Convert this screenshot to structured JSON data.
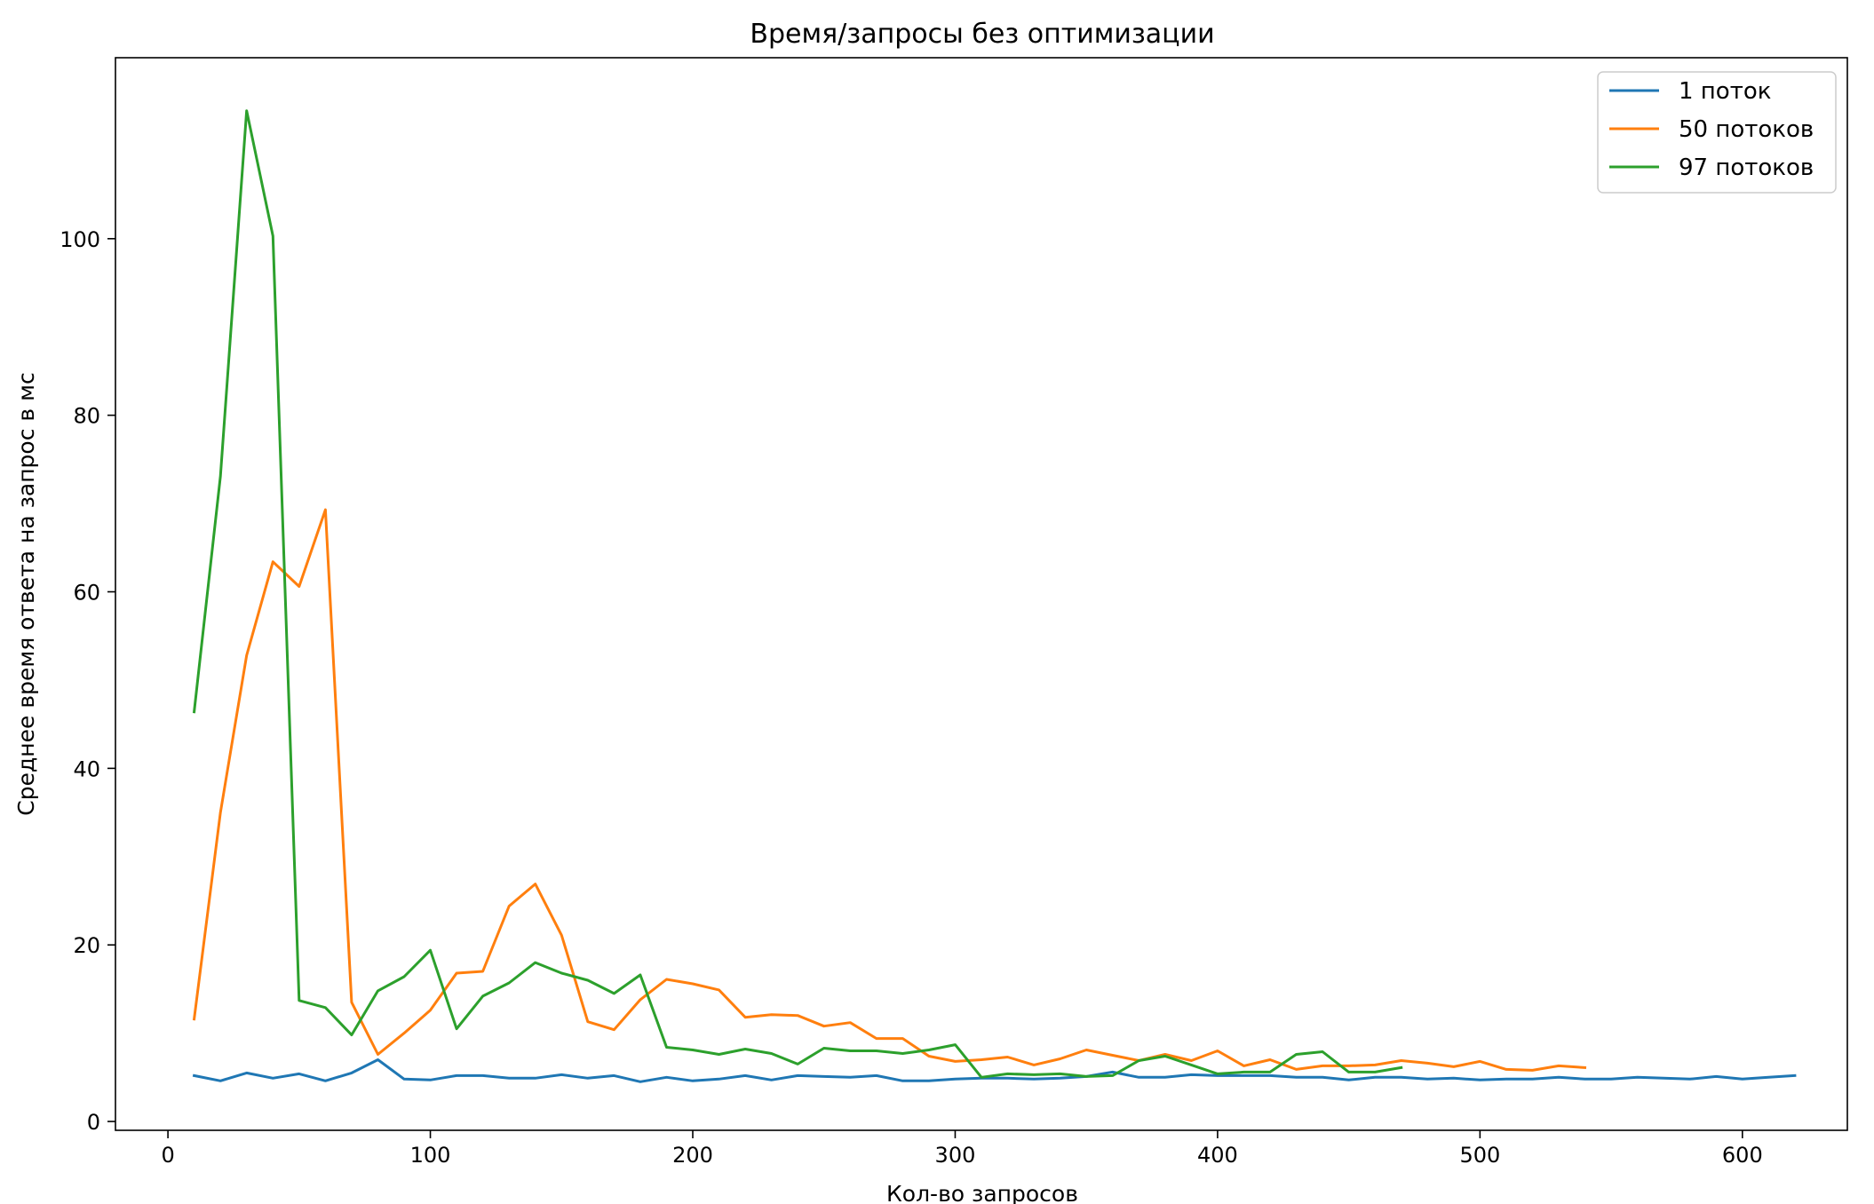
{
  "chart_data": {
    "type": "line",
    "title": "Время/запросы без оптимизации",
    "xlabel": "Кол-во запросов",
    "ylabel": "Среднее время ответа на запрос в мс",
    "xlim": [
      -20,
      640
    ],
    "ylim": [
      -1,
      120.5
    ],
    "xticks": [
      0,
      100,
      200,
      300,
      400,
      500,
      600
    ],
    "yticks": [
      0,
      20,
      40,
      60,
      80,
      100
    ],
    "grid": false,
    "legend_position": "top-right",
    "series": [
      {
        "name": "1 поток",
        "color": "#1f77b4",
        "x": [
          10,
          20,
          30,
          40,
          50,
          60,
          70,
          80,
          90,
          100,
          110,
          120,
          130,
          140,
          150,
          160,
          170,
          180,
          190,
          200,
          210,
          220,
          230,
          240,
          250,
          260,
          270,
          280,
          290,
          300,
          310,
          320,
          330,
          340,
          350,
          360,
          370,
          380,
          390,
          400,
          410,
          420,
          430,
          440,
          450,
          460,
          470,
          480,
          490,
          500,
          510,
          520,
          530,
          540,
          550,
          560,
          570,
          580,
          590,
          600,
          610,
          620
        ],
        "y": [
          5.2,
          4.6,
          5.5,
          4.9,
          5.4,
          4.6,
          5.5,
          7.0,
          4.8,
          4.7,
          5.2,
          5.2,
          4.9,
          4.9,
          5.3,
          4.9,
          5.2,
          4.5,
          5.0,
          4.6,
          4.8,
          5.2,
          4.7,
          5.2,
          5.1,
          5.0,
          5.2,
          4.6,
          4.6,
          4.8,
          4.9,
          4.9,
          4.8,
          4.9,
          5.1,
          5.6,
          5.0,
          5.0,
          5.3,
          5.2,
          5.2,
          5.2,
          5.0,
          5.0,
          4.7,
          5.0,
          5.0,
          4.8,
          4.9,
          4.7,
          4.8,
          4.8,
          5.0,
          4.8,
          4.8,
          5.0,
          4.9,
          4.8,
          5.1,
          4.8,
          5.0,
          5.2
        ]
      },
      {
        "name": "50 потоков",
        "color": "#ff7f0e",
        "x": [
          10,
          20,
          30,
          40,
          50,
          60,
          70,
          80,
          90,
          100,
          110,
          120,
          130,
          140,
          150,
          160,
          170,
          180,
          190,
          200,
          210,
          220,
          230,
          240,
          250,
          260,
          270,
          280,
          290,
          300,
          310,
          320,
          330,
          340,
          350,
          360,
          370,
          380,
          390,
          400,
          410,
          420,
          430,
          440,
          450,
          460,
          470,
          480,
          490,
          500,
          510,
          520,
          530,
          540
        ],
        "y": [
          11.6,
          35.0,
          52.8,
          63.4,
          60.6,
          69.3,
          13.5,
          7.6,
          10.0,
          12.6,
          16.8,
          17.0,
          24.4,
          26.9,
          21.1,
          11.3,
          10.4,
          13.8,
          16.1,
          15.6,
          14.9,
          11.8,
          12.1,
          12.0,
          10.8,
          11.2,
          9.4,
          9.4,
          7.4,
          6.8,
          7.0,
          7.3,
          6.4,
          7.1,
          8.1,
          7.5,
          6.9,
          7.6,
          6.9,
          8.0,
          6.3,
          7.0,
          5.9,
          6.3,
          6.3,
          6.4,
          6.9,
          6.6,
          6.2,
          6.8,
          5.9,
          5.8,
          6.3,
          6.1
        ]
      },
      {
        "name": "97 потоков",
        "color": "#2ca02c",
        "x": [
          10,
          20,
          30,
          40,
          50,
          60,
          70,
          80,
          90,
          100,
          110,
          120,
          130,
          140,
          150,
          160,
          170,
          180,
          190,
          200,
          210,
          220,
          230,
          240,
          250,
          260,
          270,
          280,
          290,
          300,
          310,
          320,
          330,
          340,
          350,
          360,
          370,
          380,
          390,
          400,
          410,
          420,
          430,
          440,
          450,
          460,
          470
        ],
        "y": [
          46.4,
          73.1,
          114.5,
          100.3,
          13.7,
          12.9,
          9.8,
          14.8,
          16.4,
          19.4,
          10.5,
          14.2,
          15.7,
          18.0,
          16.8,
          16.0,
          14.5,
          16.6,
          8.4,
          8.1,
          7.6,
          8.2,
          7.7,
          6.5,
          8.3,
          8.0,
          8.0,
          7.7,
          8.1,
          8.7,
          5.0,
          5.4,
          5.3,
          5.4,
          5.1,
          5.2,
          6.9,
          7.4,
          6.4,
          5.4,
          5.6,
          5.6,
          7.6,
          7.9,
          5.6,
          5.6,
          6.1
        ]
      }
    ]
  }
}
